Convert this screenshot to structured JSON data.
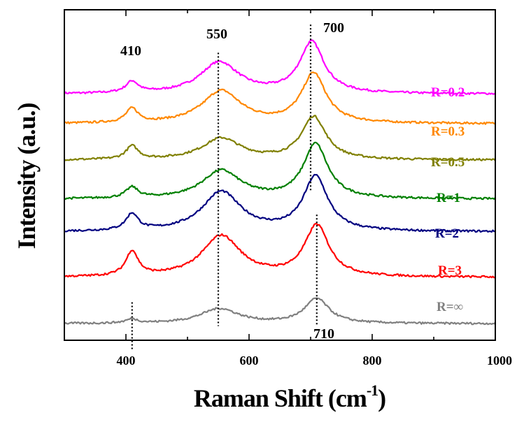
{
  "chart_data": {
    "type": "line",
    "title": "",
    "xlabel": "Raman Shift (cm",
    "xlabel_sup": "-1",
    "xlabel_close": ")",
    "ylabel": "Intensity (a.u.)",
    "xlim": [
      300,
      1000
    ],
    "ylim": [
      0,
      1
    ],
    "x_ticks": [
      400,
      600,
      800,
      1000
    ],
    "x_tick_labels": [
      "400",
      "600",
      "800",
      "1000"
    ],
    "y_ticks_shown": false,
    "grid": false,
    "legend": "inline labels at right",
    "reference_lines": [
      {
        "x": 410,
        "label": "410"
      },
      {
        "x": 550,
        "label": "550"
      },
      {
        "x": 700,
        "label": "700"
      },
      {
        "x": 710,
        "label": "710"
      }
    ],
    "series": [
      {
        "name": "R=0.2",
        "color": "#ff00ff",
        "baseline": 0.745,
        "peaks": [
          {
            "x": 410,
            "h": 0.034
          },
          {
            "x": 552,
            "h": 0.095
          },
          {
            "x": 702,
            "h": 0.155
          }
        ]
      },
      {
        "name": "R=0.3",
        "color": "#ff8800",
        "baseline": 0.655,
        "peaks": [
          {
            "x": 410,
            "h": 0.042
          },
          {
            "x": 555,
            "h": 0.098
          },
          {
            "x": 705,
            "h": 0.15
          }
        ]
      },
      {
        "name": "R=0.5",
        "color": "#808000",
        "baseline": 0.545,
        "peaks": [
          {
            "x": 410,
            "h": 0.04
          },
          {
            "x": 555,
            "h": 0.065
          },
          {
            "x": 705,
            "h": 0.13
          }
        ]
      },
      {
        "name": "R=1",
        "color": "#008000",
        "baseline": 0.427,
        "peaks": [
          {
            "x": 410,
            "h": 0.032
          },
          {
            "x": 555,
            "h": 0.085
          },
          {
            "x": 708,
            "h": 0.165
          }
        ]
      },
      {
        "name": "R=2",
        "color": "#000080",
        "baseline": 0.328,
        "peaks": [
          {
            "x": 410,
            "h": 0.05
          },
          {
            "x": 555,
            "h": 0.12
          },
          {
            "x": 708,
            "h": 0.165
          }
        ]
      },
      {
        "name": "R=3",
        "color": "#ff0000",
        "baseline": 0.19,
        "peaks": [
          {
            "x": 410,
            "h": 0.075
          },
          {
            "x": 555,
            "h": 0.125
          },
          {
            "x": 710,
            "h": 0.155
          }
        ]
      },
      {
        "name": "R=∞",
        "color": "#808080",
        "baseline": 0.05,
        "peaks": [
          {
            "x": 410,
            "h": 0.012
          },
          {
            "x": 552,
            "h": 0.045
          },
          {
            "x": 710,
            "h": 0.075
          }
        ]
      }
    ]
  }
}
